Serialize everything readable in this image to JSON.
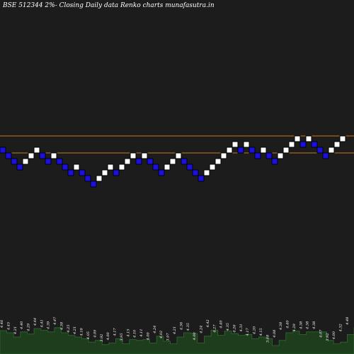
{
  "title": "BSE 512344  2%-  Closing Daily data  Renko  charts munafasutra.in",
  "colors": {
    "background": "#1c1c1c",
    "up_brick": "#ffffff",
    "down_brick": "#1a10e6",
    "brick_border": "#000000",
    "level_line": "#c87a1e",
    "volume_fill": "#1d3d1d",
    "volume_top": "#2f6b2f",
    "text": "#ffffff"
  },
  "chart_data": {
    "type": "renko",
    "title": "BSE 512344  2%-  Closing Daily data  Renko  charts munafasutra.in",
    "grid": false,
    "bricks": [
      {
        "level": 0,
        "dir": "down"
      },
      {
        "level": -1,
        "dir": "down"
      },
      {
        "level": -2,
        "dir": "down"
      },
      {
        "level": -3,
        "dir": "down"
      },
      {
        "level": -2,
        "dir": "up"
      },
      {
        "level": -1,
        "dir": "up"
      },
      {
        "level": 0,
        "dir": "up"
      },
      {
        "level": -1,
        "dir": "down"
      },
      {
        "level": -2,
        "dir": "down"
      },
      {
        "level": -1,
        "dir": "up"
      },
      {
        "level": -2,
        "dir": "down"
      },
      {
        "level": -3,
        "dir": "down"
      },
      {
        "level": -4,
        "dir": "down"
      },
      {
        "level": -3,
        "dir": "up"
      },
      {
        "level": -4,
        "dir": "down"
      },
      {
        "level": -5,
        "dir": "down"
      },
      {
        "level": -6,
        "dir": "down"
      },
      {
        "level": -5,
        "dir": "up"
      },
      {
        "level": -4,
        "dir": "up"
      },
      {
        "level": -3,
        "dir": "up"
      },
      {
        "level": -4,
        "dir": "down"
      },
      {
        "level": -3,
        "dir": "up"
      },
      {
        "level": -2,
        "dir": "up"
      },
      {
        "level": -1,
        "dir": "up"
      },
      {
        "level": -2,
        "dir": "down"
      },
      {
        "level": -1,
        "dir": "up"
      },
      {
        "level": -2,
        "dir": "down"
      },
      {
        "level": -3,
        "dir": "down"
      },
      {
        "level": -4,
        "dir": "down"
      },
      {
        "level": -3,
        "dir": "up"
      },
      {
        "level": -2,
        "dir": "up"
      },
      {
        "level": -1,
        "dir": "up"
      },
      {
        "level": -2,
        "dir": "down"
      },
      {
        "level": -3,
        "dir": "down"
      },
      {
        "level": -4,
        "dir": "down"
      },
      {
        "level": -5,
        "dir": "down"
      },
      {
        "level": -4,
        "dir": "up"
      },
      {
        "level": -3,
        "dir": "up"
      },
      {
        "level": -2,
        "dir": "up"
      },
      {
        "level": -1,
        "dir": "up"
      },
      {
        "level": 0,
        "dir": "up"
      },
      {
        "level": 1,
        "dir": "up"
      },
      {
        "level": 0,
        "dir": "down"
      },
      {
        "level": 1,
        "dir": "up"
      },
      {
        "level": 0,
        "dir": "down"
      },
      {
        "level": -1,
        "dir": "down"
      },
      {
        "level": 0,
        "dir": "up"
      },
      {
        "level": -1,
        "dir": "down"
      },
      {
        "level": -2,
        "dir": "down"
      },
      {
        "level": -1,
        "dir": "up"
      },
      {
        "level": 0,
        "dir": "up"
      },
      {
        "level": 1,
        "dir": "up"
      },
      {
        "level": 2,
        "dir": "up"
      },
      {
        "level": 1,
        "dir": "down"
      },
      {
        "level": 2,
        "dir": "up"
      },
      {
        "level": 1,
        "dir": "down"
      },
      {
        "level": 0,
        "dir": "down"
      },
      {
        "level": -1,
        "dir": "down"
      },
      {
        "level": 0,
        "dir": "up"
      },
      {
        "level": 1,
        "dir": "up"
      },
      {
        "level": 2,
        "dir": "up"
      }
    ],
    "level_lines": [
      {
        "level": 2.5
      },
      {
        "level": -0.5
      }
    ],
    "volume_labels": [
      "4.46",
      "4.45",
      "4.21",
      "4.40",
      "4.29",
      "4.44",
      "4.41",
      "4.39",
      "4.47",
      "4.38",
      "4.25",
      "4.21",
      "4.18",
      "4.05",
      "4.09",
      "3.92",
      "4.00",
      "4.17",
      "3.95",
      "4.15",
      "4.10",
      "4.11",
      "4.00",
      "4.24",
      "4.02",
      "3.97",
      "4.21",
      "4.36",
      "4.35",
      "4.00",
      "4.24",
      "4.42",
      "4.27",
      "4.40",
      "4.35",
      "4.26",
      "4.31",
      "4.17",
      "4.20",
      "4.15",
      "3.88",
      "4.08",
      "4.38",
      "4.40",
      "4.29",
      "4.38",
      "4.38",
      "4.38",
      "4.07",
      "3.92",
      "4.00",
      "4.32",
      "4.48"
    ],
    "volumes": [
      0.55,
      0.5,
      0.4,
      0.52,
      0.47,
      0.6,
      0.56,
      0.52,
      0.62,
      0.5,
      0.44,
      0.4,
      0.36,
      0.28,
      0.32,
      0.22,
      0.26,
      0.36,
      0.24,
      0.34,
      0.32,
      0.34,
      0.26,
      0.42,
      0.3,
      0.24,
      0.4,
      0.5,
      0.48,
      0.26,
      0.42,
      0.56,
      0.44,
      0.54,
      0.48,
      0.44,
      0.46,
      0.36,
      0.4,
      0.36,
      0.2,
      0.32,
      0.5,
      0.54,
      0.46,
      0.52,
      0.52,
      0.52,
      0.32,
      0.24,
      0.28,
      0.46,
      0.62
    ]
  }
}
